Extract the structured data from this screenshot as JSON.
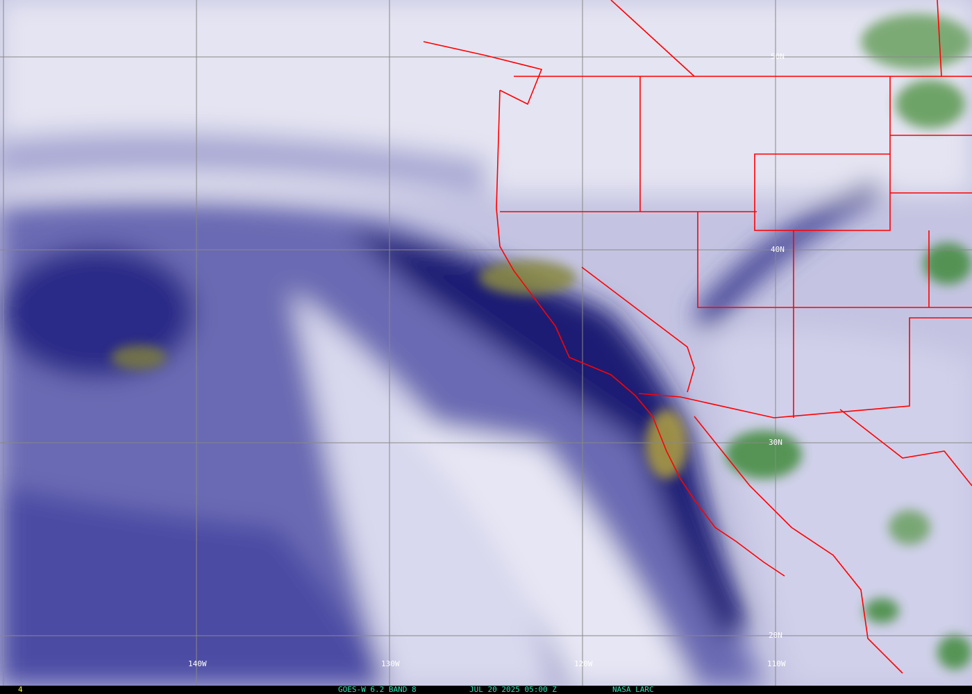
{
  "map": {
    "type": "satellite-water-vapor-imagery",
    "colors": {
      "dry": "#f2f2fa",
      "moist_light": "#b8b8dc",
      "moist": "#5a5aa8",
      "very_moist": "#16166e",
      "cold_cloud_green": "#3f8a3a",
      "cold_cloud_yellow": "#b0a040",
      "borders": "#ff0000",
      "grid": "#888888"
    },
    "lat_labels": [
      "50N",
      "40N",
      "30N",
      "20N"
    ],
    "lon_labels": [
      "140W",
      "130W",
      "120W",
      "110W"
    ]
  },
  "caption": {
    "frame_number": "4",
    "product": "GOES-W 6.2 BAND 8",
    "datetime": "JUL 20 2025 05:00 Z",
    "source": "NASA LARC"
  }
}
